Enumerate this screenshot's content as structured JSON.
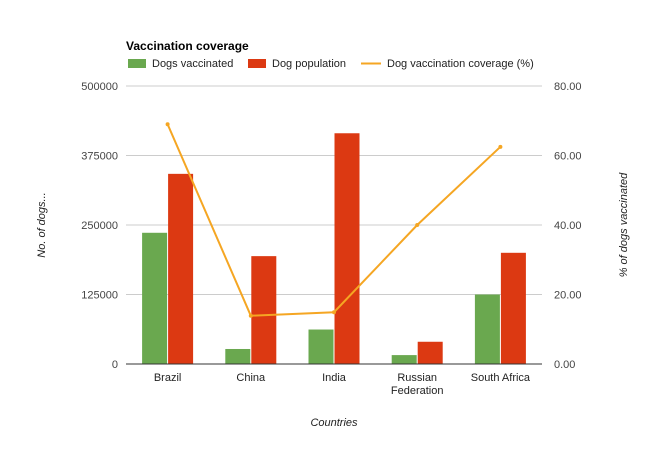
{
  "chart_data": {
    "type": "bar",
    "title": "Vaccination coverage",
    "categories": [
      "Brazil",
      "China",
      "India",
      "Russian Federation",
      "South Africa"
    ],
    "category_lines": [
      [
        "Brazil"
      ],
      [
        "China"
      ],
      [
        "India"
      ],
      [
        "Russian",
        "Federation"
      ],
      [
        "South Africa"
      ]
    ],
    "series": [
      {
        "name": "Dogs vaccinated",
        "type": "bar",
        "axis": "left",
        "color": "#6aa84f",
        "values": [
          236000,
          27000,
          62000,
          16000,
          125000
        ]
      },
      {
        "name": "Dog population",
        "type": "bar",
        "axis": "left",
        "color": "#dc3912",
        "values": [
          342000,
          194000,
          415000,
          40000,
          200000
        ]
      },
      {
        "name": "Dog vaccination coverage (%)",
        "type": "line",
        "axis": "right",
        "color": "#f5a623",
        "values": [
          69.0,
          13.9,
          14.9,
          40.0,
          62.5
        ]
      }
    ],
    "xlabel": "Countries",
    "ylabel": "No. of dogs...",
    "y2label": "% of dogs vaccinated",
    "ylim": [
      0,
      500000
    ],
    "y2lim": [
      0,
      80
    ],
    "yticks": [
      "0",
      "125000",
      "250000",
      "375000",
      "500000"
    ],
    "y2ticks": [
      "0.00",
      "20.00",
      "40.00",
      "60.00",
      "80.00"
    ],
    "legend_position": "top-left",
    "grid": true
  }
}
